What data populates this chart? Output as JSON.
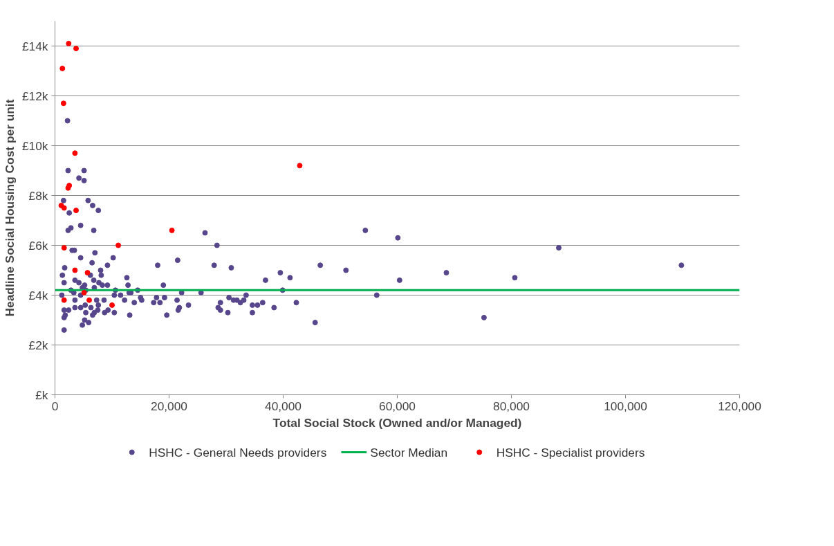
{
  "chart_data": {
    "type": "scatter",
    "xlabel": "Total Social Stock (Owned and/or Managed)",
    "ylabel": "Headline Social Housing Cost per unit",
    "xlim": [
      0,
      120000
    ],
    "xticks": [
      {
        "value": 0,
        "label": "0"
      },
      {
        "value": 20000,
        "label": "20,000"
      },
      {
        "value": 40000,
        "label": "40,000"
      },
      {
        "value": 60000,
        "label": "60,000"
      },
      {
        "value": 80000,
        "label": "80,000"
      },
      {
        "value": 100000,
        "label": "100,000"
      },
      {
        "value": 120000,
        "label": "120,000"
      }
    ],
    "ylim": [
      0,
      15000
    ],
    "yticks": [
      {
        "value": 0,
        "label": "£k"
      },
      {
        "value": 2000,
        "label": "£2k"
      },
      {
        "value": 4000,
        "label": "£4k"
      },
      {
        "value": 6000,
        "label": "£6k"
      },
      {
        "value": 8000,
        "label": "£8k"
      },
      {
        "value": 10000,
        "label": "£10k"
      },
      {
        "value": 12000,
        "label": "£12k"
      },
      {
        "value": 14000,
        "label": "£14k"
      }
    ],
    "grid": "y",
    "legend": "bottom",
    "marker": "circle",
    "series": [
      {
        "name": "HSHC - General Needs providers",
        "color": "#58468c",
        "x": [
          2200,
          2300,
          5100,
          4200,
          5100,
          1500,
          5800,
          6600,
          7600,
          2500,
          2800,
          2300,
          4500,
          6800,
          3000,
          3400,
          7000,
          4500,
          10200,
          6500,
          1700,
          9200,
          8000,
          8100,
          1300,
          6800,
          1600,
          7700,
          6200,
          3500,
          4200,
          5200,
          9200,
          2800,
          4800,
          5400,
          6900,
          8300,
          10600,
          12600,
          12800,
          14500,
          18000,
          19000,
          21500,
          22200,
          1200,
          3300,
          3500,
          4500,
          7300,
          7600,
          8600,
          10400,
          11500,
          12200,
          13000,
          13300,
          13900,
          15000,
          15200,
          17300,
          17800,
          18400,
          19200,
          21400,
          21800,
          21600,
          19600,
          1600,
          2400,
          1800,
          1600,
          1600,
          3500,
          4500,
          5300,
          5400,
          5200,
          4800,
          5900,
          6300,
          6900,
          6600,
          7500,
          8700,
          9300,
          10400,
          13100,
          26300,
          28400,
          27900,
          30900,
          36900,
          39500,
          41200,
          46500,
          51000,
          54400,
          60100,
          60400,
          68600,
          56400,
          45600,
          39900,
          42300,
          33500,
          33100,
          32500,
          31900,
          31300,
          30500,
          29000,
          28600,
          29000,
          30300,
          34600,
          34600,
          35500,
          36400,
          38400,
          25600,
          23400,
          88300,
          109800,
          80600,
          75200
        ],
        "values": [
          11000,
          9000,
          9000,
          8700,
          8600,
          7800,
          7800,
          7600,
          7400,
          7300,
          6700,
          6600,
          6800,
          6600,
          5800,
          5800,
          5700,
          5500,
          5500,
          5300,
          5100,
          5200,
          5000,
          4800,
          4800,
          4600,
          4500,
          4500,
          4800,
          4600,
          4500,
          4400,
          4400,
          4200,
          4300,
          4200,
          4300,
          4400,
          4200,
          4700,
          4400,
          4200,
          5200,
          4400,
          5400,
          4100,
          4000,
          4100,
          3800,
          4000,
          3800,
          3600,
          3800,
          4000,
          4000,
          3800,
          4100,
          4100,
          3700,
          3900,
          3800,
          3700,
          3900,
          3700,
          3900,
          3800,
          3500,
          3400,
          3200,
          3400,
          3400,
          3200,
          3100,
          2600,
          3500,
          3500,
          3600,
          3300,
          3000,
          2800,
          2900,
          3500,
          3300,
          3200,
          3400,
          3300,
          3400,
          3300,
          3200,
          6500,
          6000,
          5200,
          5100,
          4600,
          4900,
          4700,
          5200,
          5000,
          6600,
          6300,
          4600,
          4900,
          4000,
          2900,
          4200,
          3700,
          4000,
          3800,
          3700,
          3800,
          3800,
          3900,
          3700,
          3500,
          3400,
          3300,
          3600,
          3300,
          3600,
          3700,
          3500,
          4100,
          3600,
          5900,
          5200,
          4700,
          3100
        ]
      },
      {
        "name": "Sector Median",
        "type": "line",
        "marker": "none",
        "color": "#00b050",
        "x": [
          0,
          120000
        ],
        "values": [
          4200,
          4200
        ]
      },
      {
        "name": "HSHC - Specialist providers",
        "color": "#ff0000",
        "x": [
          2400,
          3700,
          1300,
          1500,
          3500,
          42900,
          2500,
          2300,
          1100,
          1600,
          3700,
          20500,
          1600,
          11100,
          3500,
          5700,
          5100,
          1600,
          6000,
          10000
        ],
        "values": [
          14100,
          13900,
          13100,
          11700,
          9700,
          9200,
          8400,
          8300,
          7600,
          7500,
          7400,
          6600,
          5900,
          6000,
          5000,
          4900,
          4100,
          3800,
          3800,
          3600
        ]
      }
    ]
  }
}
